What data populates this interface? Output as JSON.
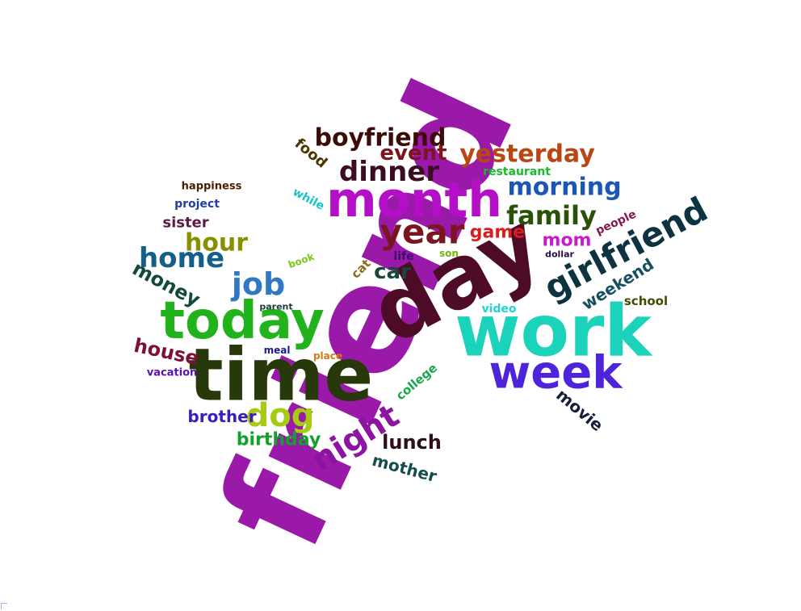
{
  "word_cloud": {
    "words": [
      {
        "text": "friend",
        "color": "#9b19a8"
      },
      {
        "text": "day",
        "color": "#4d0b27"
      },
      {
        "text": "work",
        "color": "#1bd2bb"
      },
      {
        "text": "time",
        "color": "#27390a"
      },
      {
        "text": "today",
        "color": "#22b21c"
      },
      {
        "text": "month",
        "color": "#b20fc6"
      },
      {
        "text": "week",
        "color": "#4d24da"
      },
      {
        "text": "girlfriend",
        "color": "#0e3340"
      },
      {
        "text": "night",
        "color": "#8c14a0"
      },
      {
        "text": "dinner",
        "color": "#3a0d22"
      },
      {
        "text": "year",
        "color": "#7a1620"
      },
      {
        "text": "boyfriend",
        "color": "#3b0d08"
      },
      {
        "text": "yesterday",
        "color": "#b84713"
      },
      {
        "text": "morning",
        "color": "#1a56b8"
      },
      {
        "text": "family",
        "color": "#2a5108"
      },
      {
        "text": "home",
        "color": "#145f8a"
      },
      {
        "text": "job",
        "color": "#2f78c2"
      },
      {
        "text": "dog",
        "color": "#a5cc12"
      },
      {
        "text": "event",
        "color": "#7b1520"
      },
      {
        "text": "hour",
        "color": "#889000"
      },
      {
        "text": "money",
        "color": "#0f4a3a"
      },
      {
        "text": "game",
        "color": "#d81d20"
      },
      {
        "text": "car",
        "color": "#18473c"
      },
      {
        "text": "mom",
        "color": "#c919cf"
      },
      {
        "text": "lunch",
        "color": "#2c0e1c"
      },
      {
        "text": "birthday",
        "color": "#14a02c"
      },
      {
        "text": "house",
        "color": "#800f35"
      },
      {
        "text": "brother",
        "color": "#3c1ebe"
      },
      {
        "text": "mother",
        "color": "#144d4b"
      },
      {
        "text": "weekend",
        "color": "#14505f"
      },
      {
        "text": "movie",
        "color": "#141e38"
      },
      {
        "text": "sister",
        "color": "#5b1b45"
      },
      {
        "text": "food",
        "color": "#4a3400"
      },
      {
        "text": "restaurant",
        "color": "#18ba2e"
      },
      {
        "text": "school",
        "color": "#3c4f00"
      },
      {
        "text": "college",
        "color": "#1ba64a"
      },
      {
        "text": "project",
        "color": "#1f3fa6"
      },
      {
        "text": "happiness",
        "color": "#4a1f00"
      },
      {
        "text": "while",
        "color": "#18c4c4"
      },
      {
        "text": "people",
        "color": "#861753"
      },
      {
        "text": "video",
        "color": "#22d5cc"
      },
      {
        "text": "cat",
        "color": "#8b6b1e"
      },
      {
        "text": "life",
        "color": "#3a0f6b"
      },
      {
        "text": "son",
        "color": "#78b010"
      },
      {
        "text": "book",
        "color": "#78c814"
      },
      {
        "text": "parent",
        "color": "#1d3a3a"
      },
      {
        "text": "meal",
        "color": "#1a1a8c"
      },
      {
        "text": "place",
        "color": "#d47a14"
      },
      {
        "text": "vacation",
        "color": "#5a10b8"
      },
      {
        "text": "dollar",
        "color": "#2a0a45"
      }
    ]
  }
}
